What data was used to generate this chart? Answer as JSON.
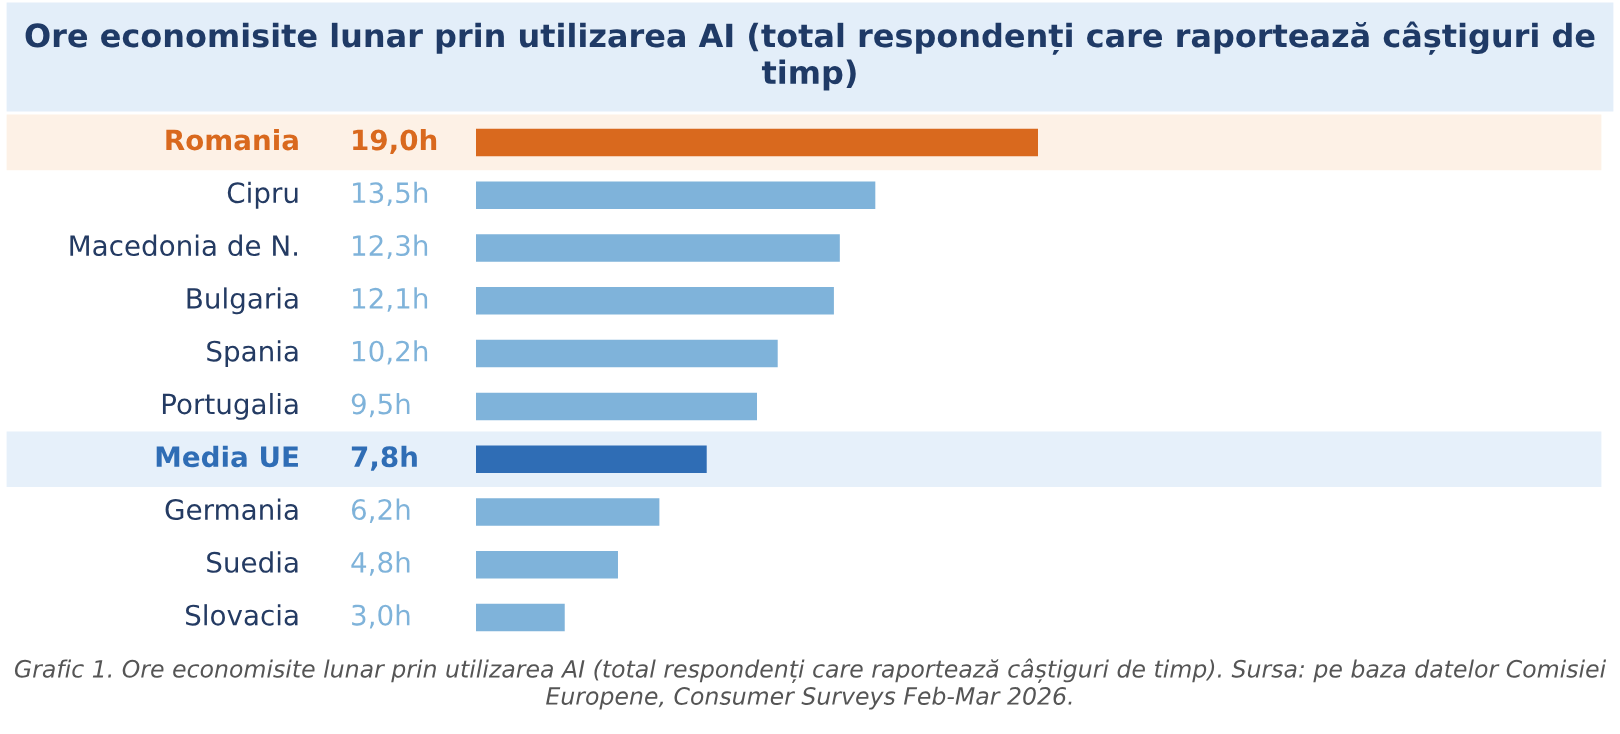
{
  "chart_data": {
    "type": "bar",
    "orientation": "horizontal",
    "title": "Ore economisite lunar prin utilizarea AI (total respondenți care raportează câștiguri de timp)",
    "categories": [
      "Romania",
      "Cipru",
      "Macedonia de N.",
      "Bulgaria",
      "Spania",
      "Portugalia",
      "Media UE",
      "Germania",
      "Suedia",
      "Slovacia"
    ],
    "values": [
      19.0,
      13.5,
      12.3,
      12.1,
      10.2,
      9.5,
      7.8,
      6.2,
      4.8,
      3.0
    ],
    "colors": [
      "#d9691e",
      "#7fb3da",
      "#7fb3da",
      "#7fb3da",
      "#7fb3da",
      "#7fb3da",
      "#2f6db5",
      "#7fb3da",
      "#7fb3da",
      "#7fb3da"
    ],
    "value_labels": [
      "19,0h",
      "13,5h",
      "12,3h",
      "12,1h",
      "10,2h",
      "9,5h",
      "7,8h",
      "6,2h",
      "4,8h",
      "3,0h"
    ],
    "bands": [
      {
        "axis": "y",
        "from": "Romania",
        "to": "Romania",
        "color": "#fdf1e6"
      },
      {
        "axis": "y",
        "from": "Media UE",
        "to": "Media UE",
        "color": "#e6f0fa"
      }
    ],
    "annotations": [
      "Grafic 1. Ore economisite lunar prin utilizarea AI (total respondenți care raportează câștiguri de timp). Sursa: pe baza datelor Comisiei Europene, Consumer Surveys Feb-Mar 2026."
    ]
  }
}
